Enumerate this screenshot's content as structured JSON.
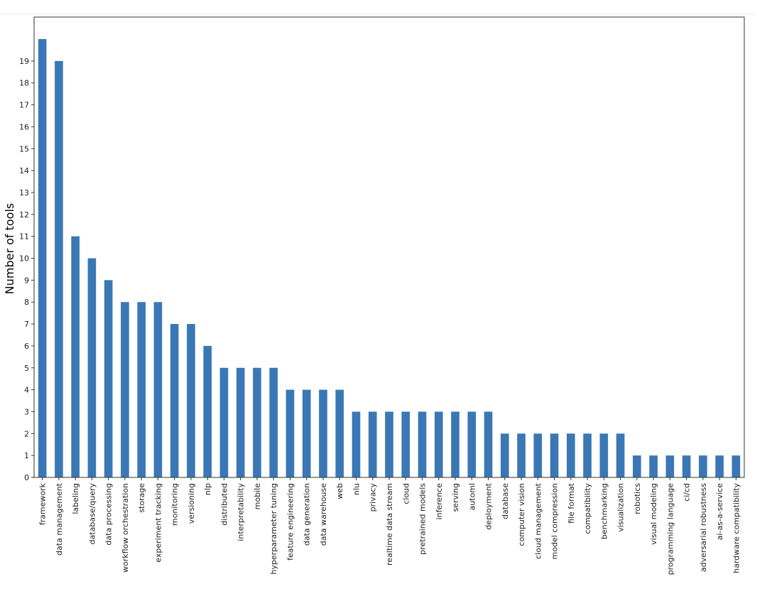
{
  "chart_data": {
    "type": "bar",
    "title": "",
    "xlabel": "",
    "ylabel": "Number of tools",
    "ylim": [
      0,
      21
    ],
    "yticks": [
      0,
      1,
      2,
      3,
      4,
      5,
      6,
      7,
      8,
      9,
      10,
      11,
      12,
      13,
      14,
      15,
      16,
      17,
      18,
      19
    ],
    "grid": false,
    "legend": false,
    "bar_color": "#3a78b5",
    "categories": [
      "framework",
      "data management",
      "labeling",
      "database/query",
      "data processing",
      "workflow orchestration",
      "storage",
      "experiment tracking",
      "monitoring",
      "versioning",
      "nlp",
      "distributed",
      "interpretability",
      "mobile",
      "hyperparameter tuning",
      "feature engineering",
      "data generation",
      "data warehouse",
      "web",
      "nlu",
      "privacy",
      "realtime data stream",
      "cloud",
      "pretrained models",
      "inference",
      "serving",
      "automl",
      "deployment",
      "database",
      "computer vision",
      "cloud management",
      "model compression",
      "file format",
      "compatibility",
      "benchmarking",
      "visualization",
      "robotics",
      "visual modeling",
      "programming language",
      "ci/cd",
      "adversarial robustness",
      "ai-as-a-service",
      "hardware compatibility"
    ],
    "values": [
      20,
      19,
      11,
      10,
      9,
      8,
      8,
      8,
      7,
      7,
      6,
      5,
      5,
      5,
      5,
      4,
      4,
      4,
      4,
      3,
      3,
      3,
      3,
      3,
      3,
      3,
      3,
      3,
      2,
      2,
      2,
      2,
      2,
      2,
      2,
      2,
      1,
      1,
      1,
      1,
      1,
      1,
      1
    ]
  }
}
